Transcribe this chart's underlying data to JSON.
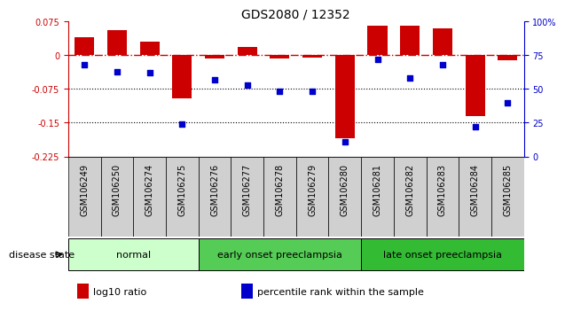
{
  "title": "GDS2080 / 12352",
  "samples": [
    "GSM106249",
    "GSM106250",
    "GSM106274",
    "GSM106275",
    "GSM106276",
    "GSM106277",
    "GSM106278",
    "GSM106279",
    "GSM106280",
    "GSM106281",
    "GSM106282",
    "GSM106283",
    "GSM106284",
    "GSM106285"
  ],
  "log10_ratio": [
    0.04,
    0.055,
    0.03,
    -0.095,
    -0.008,
    0.018,
    -0.008,
    -0.005,
    -0.185,
    0.065,
    0.065,
    0.06,
    -0.135,
    -0.012
  ],
  "percentile_rank": [
    68,
    63,
    62,
    24,
    57,
    53,
    48,
    48,
    11,
    72,
    58,
    68,
    22,
    40
  ],
  "ylim_left": [
    -0.225,
    0.075
  ],
  "ylim_right": [
    0,
    100
  ],
  "yticks_left": [
    -0.225,
    -0.15,
    -0.075,
    0,
    0.075
  ],
  "yticks_right": [
    0,
    25,
    50,
    75,
    100
  ],
  "groups": [
    {
      "label": "normal",
      "start": 0,
      "end": 3,
      "color": "#ccffcc"
    },
    {
      "label": "early onset preeclampsia",
      "start": 4,
      "end": 8,
      "color": "#55cc55"
    },
    {
      "label": "late onset preeclampsia",
      "start": 9,
      "end": 13,
      "color": "#33bb33"
    }
  ],
  "bar_color": "#cc0000",
  "scatter_color": "#0000cc",
  "hline_color": "#cc0000",
  "hline_style": "-.",
  "dotted_lines": [
    -0.075,
    -0.15
  ],
  "legend_items": [
    {
      "label": "log10 ratio",
      "color": "#cc0000"
    },
    {
      "label": "percentile rank within the sample",
      "color": "#0000cc"
    }
  ],
  "background_color": "#ffffff",
  "title_fontsize": 10,
  "tick_fontsize": 7,
  "label_fontsize": 8,
  "group_label_fontsize": 8,
  "disease_state_fontsize": 8
}
